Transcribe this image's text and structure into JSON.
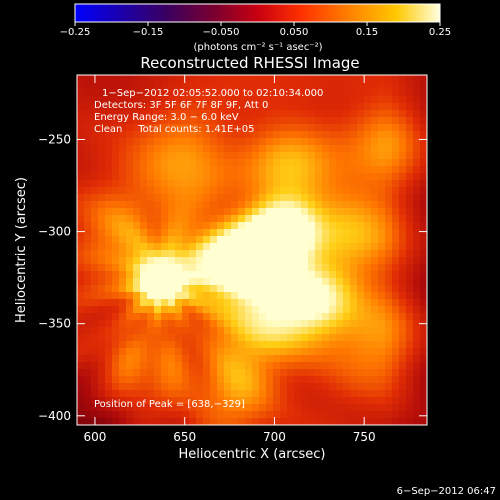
{
  "chart_data": {
    "type": "heatmap",
    "title": "Reconstructed RHESSI Image",
    "xlabel": "Heliocentric X (arcsec)",
    "ylabel": "Heliocentric Y (arcsec)",
    "xlim": [
      590,
      785
    ],
    "ylim": [
      -405,
      -215
    ],
    "x_ticks": [
      600,
      650,
      700,
      750
    ],
    "x_tick_labels": [
      "600",
      "650",
      "700",
      "750"
    ],
    "y_ticks": [
      -400,
      -350,
      -300,
      -250
    ],
    "y_tick_labels": [
      "−400",
      "−350",
      "−300",
      "−250"
    ],
    "colorbar": {
      "min": -0.25,
      "max": 0.25,
      "ticks": [
        -0.25,
        -0.15,
        -0.05,
        0.05,
        0.15,
        0.25
      ],
      "tick_labels": [
        "−0.25",
        "−0.15",
        "−0.050",
        "0.050",
        "0.15",
        "0.25"
      ],
      "units_label": "(photons cm⁻² s⁻¹ asec⁻²)",
      "colormap": "rainbow-3"
    },
    "annotations": [
      "1−Sep−2012 02:05:52.000 to 02:10:34.000",
      "Detectors: 3F 5F 6F 7F 8F 9F, Att 0",
      "Energy Range: 3.0 − 6.0 keV",
      "Clean     Total counts: 1.41E+05"
    ],
    "peak_label": "Position of Peak = [638,−329]",
    "peak": [
      638,
      -329
    ],
    "date_stamp": "6−Sep−2012 06:47",
    "intensity_features": [
      {
        "x": 636,
        "y": -328,
        "peak": 1.0,
        "sigma": 11
      },
      {
        "x": 690,
        "y": -312,
        "peak": 0.95,
        "sigma": 14
      },
      {
        "x": 706,
        "y": -300,
        "peak": 0.85,
        "sigma": 13
      },
      {
        "x": 666,
        "y": -318,
        "peak": 0.75,
        "sigma": 16
      },
      {
        "x": 722,
        "y": -338,
        "peak": 0.7,
        "sigma": 16
      },
      {
        "x": 695,
        "y": -345,
        "peak": 0.7,
        "sigma": 18
      },
      {
        "x": 652,
        "y": -262,
        "peak": 0.55,
        "sigma": 18
      },
      {
        "x": 745,
        "y": -300,
        "peak": 0.5,
        "sigma": 20
      },
      {
        "x": 708,
        "y": -265,
        "peak": 0.5,
        "sigma": 18
      },
      {
        "x": 615,
        "y": -305,
        "peak": 0.45,
        "sigma": 20
      },
      {
        "x": 760,
        "y": -360,
        "peak": 0.45,
        "sigma": 18
      },
      {
        "x": 628,
        "y": -375,
        "peak": 0.4,
        "sigma": 18
      },
      {
        "x": 680,
        "y": -385,
        "peak": 0.45,
        "sigma": 18
      },
      {
        "x": 765,
        "y": -250,
        "peak": 0.4,
        "sigma": 16
      }
    ]
  }
}
